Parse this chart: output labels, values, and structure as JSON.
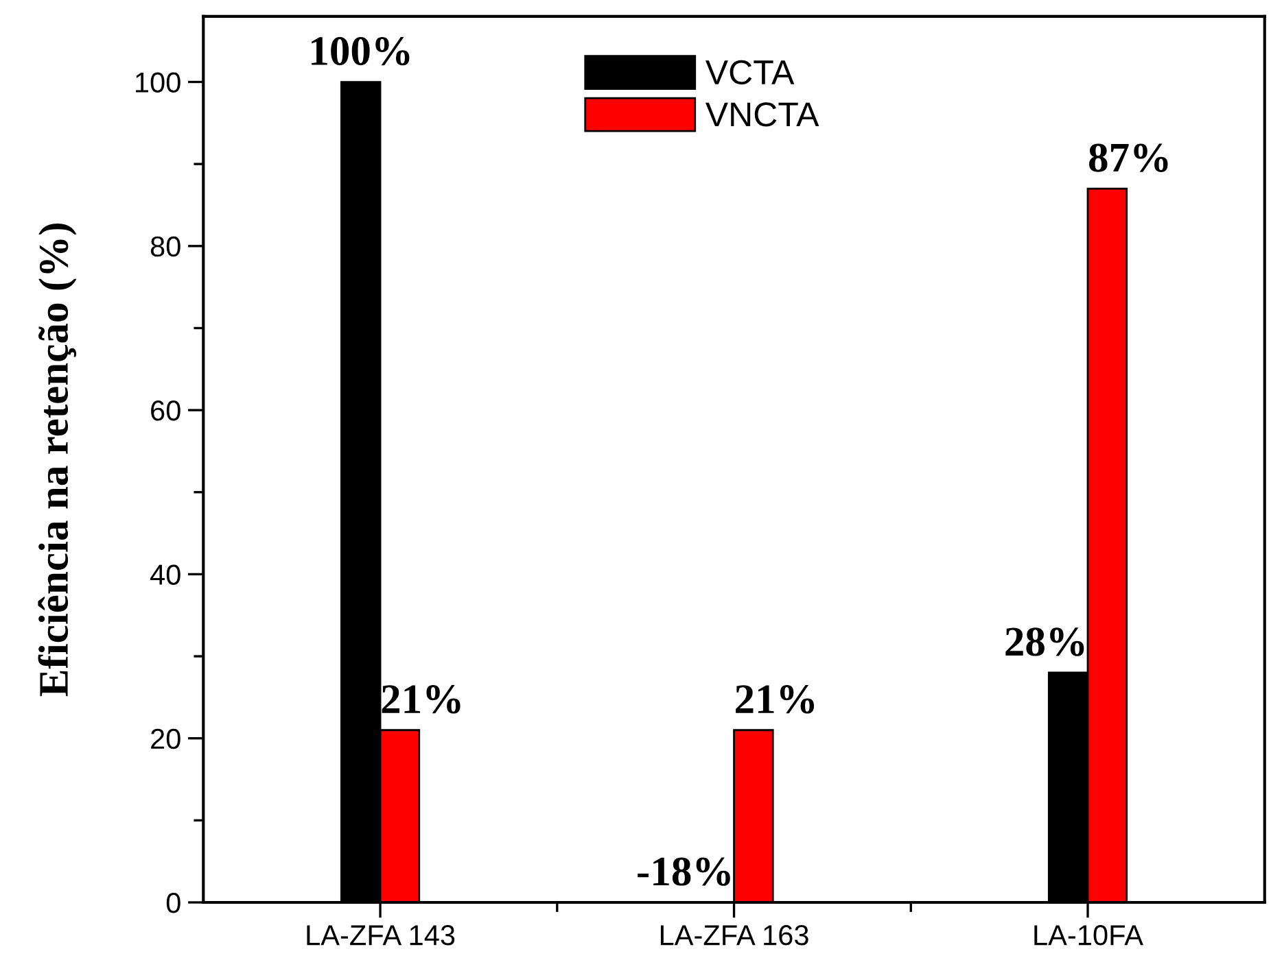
{
  "chart_data": {
    "type": "bar",
    "ylabel": "Eficiência na retenção (%)",
    "categories": [
      "LA-ZFA 143",
      "LA-ZFA 163",
      "LA-10FA"
    ],
    "series": [
      {
        "name": "VCTA",
        "color": "#000000",
        "values": [
          100,
          null,
          28
        ],
        "value_labels": [
          "100%",
          null,
          "28%"
        ]
      },
      {
        "name": "VNCTA",
        "color": "#ff0000",
        "values": [
          21,
          21,
          87
        ],
        "value_labels": [
          "21%",
          "21%",
          "87%"
        ]
      }
    ],
    "annotations": [
      {
        "text": "-18%",
        "x": "LA-ZFA 163",
        "y": 0
      }
    ],
    "ylim": [
      0,
      108
    ],
    "yticks": [
      0,
      20,
      40,
      60,
      80,
      100
    ],
    "grid": false,
    "legend": "top"
  }
}
